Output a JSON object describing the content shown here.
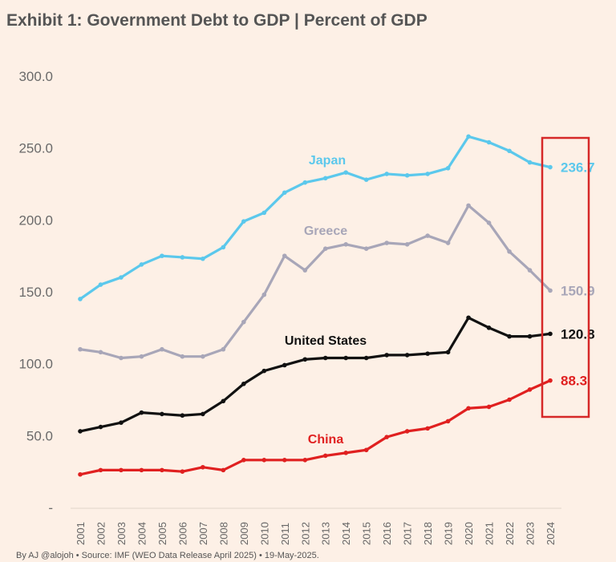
{
  "chart_data": {
    "type": "line",
    "title": "Exhibit 1: Government Debt to GDP | Percent of GDP",
    "xlabel": "",
    "ylabel": "",
    "ylim": [
      0,
      300
    ],
    "yticks": [
      "-",
      "50.0",
      "100.0",
      "150.0",
      "200.0",
      "250.0",
      "300.0"
    ],
    "ytick_values": [
      0,
      50,
      100,
      150,
      200,
      250,
      300
    ],
    "grid": false,
    "legend": "inline labels",
    "x": [
      "2001",
      "2002",
      "2003",
      "2004",
      "2005",
      "2006",
      "2007",
      "2008",
      "2009",
      "2010",
      "2011",
      "2012",
      "2013",
      "2014",
      "2015",
      "2016",
      "2017",
      "2018",
      "2019",
      "2020",
      "2021",
      "2022",
      "2023",
      "2024"
    ],
    "series": [
      {
        "name": "Japan",
        "color": "#5bc8ec",
        "end_label": "236.7",
        "values": [
          145,
          155,
          160,
          169,
          175,
          174,
          173,
          181,
          199,
          205,
          219,
          226,
          229,
          233,
          228,
          232,
          231,
          232,
          236,
          258,
          254,
          248,
          240,
          236.7
        ]
      },
      {
        "name": "Greece",
        "color": "#a8a6b8",
        "end_label": "150.9",
        "values": [
          110,
          108,
          104,
          105,
          110,
          105,
          105,
          110,
          129,
          148,
          175,
          165,
          180,
          183,
          180,
          184,
          183,
          189,
          184,
          210,
          198,
          178,
          165,
          150.9
        ]
      },
      {
        "name": "United States",
        "color": "#111111",
        "end_label": "120.8",
        "values": [
          53,
          56,
          59,
          66,
          65,
          64,
          65,
          74,
          86,
          95,
          99,
          103,
          104,
          104,
          104,
          106,
          106,
          107,
          108,
          132,
          125,
          119,
          119,
          120.8
        ]
      },
      {
        "name": "China",
        "color": "#e02020",
        "end_label": "88.3",
        "values": [
          23,
          26,
          26,
          26,
          26,
          25,
          28,
          26,
          33,
          33,
          33,
          33,
          36,
          38,
          40,
          49,
          53,
          55,
          60,
          69,
          70,
          75,
          82,
          88.3
        ]
      }
    ],
    "highlight_box_color": "#d62828",
    "footer": "By AJ @alojoh • Source: IMF (WEO Data Release April 2025) • 19-May-2025."
  }
}
